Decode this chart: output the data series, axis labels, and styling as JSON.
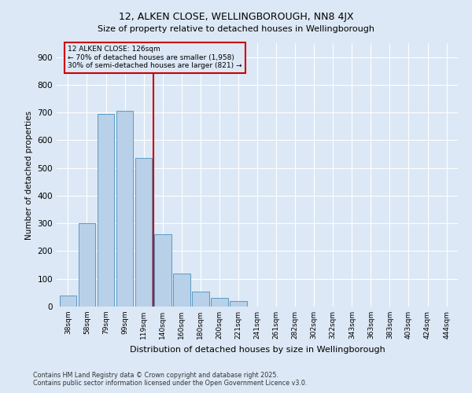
{
  "title": "12, ALKEN CLOSE, WELLINGBOROUGH, NN8 4JX",
  "subtitle": "Size of property relative to detached houses in Wellingborough",
  "xlabel": "Distribution of detached houses by size in Wellingborough",
  "ylabel": "Number of detached properties",
  "categories": [
    "38sqm",
    "58sqm",
    "79sqm",
    "99sqm",
    "119sqm",
    "140sqm",
    "160sqm",
    "180sqm",
    "200sqm",
    "221sqm",
    "241sqm",
    "261sqm",
    "282sqm",
    "302sqm",
    "322sqm",
    "343sqm",
    "363sqm",
    "383sqm",
    "403sqm",
    "424sqm",
    "444sqm"
  ],
  "values": [
    40,
    300,
    695,
    705,
    535,
    260,
    120,
    55,
    30,
    20,
    0,
    0,
    0,
    0,
    0,
    0,
    0,
    0,
    0,
    0,
    0
  ],
  "bar_color": "#b8d0e8",
  "bar_edge_color": "#5a9bc4",
  "vline_color": "#cc0000",
  "vline_pos": 4.5,
  "annotation_title": "12 ALKEN CLOSE: 126sqm",
  "annotation_line1": "← 70% of detached houses are smaller (1,958)",
  "annotation_line2": "30% of semi-detached houses are larger (821) →",
  "annotation_box_color": "#cc0000",
  "ylim": [
    0,
    950
  ],
  "yticks": [
    0,
    100,
    200,
    300,
    400,
    500,
    600,
    700,
    800,
    900
  ],
  "background_color": "#dce8f5",
  "grid_color": "#ffffff",
  "footnote1": "Contains HM Land Registry data © Crown copyright and database right 2025.",
  "footnote2": "Contains public sector information licensed under the Open Government Licence v3.0."
}
